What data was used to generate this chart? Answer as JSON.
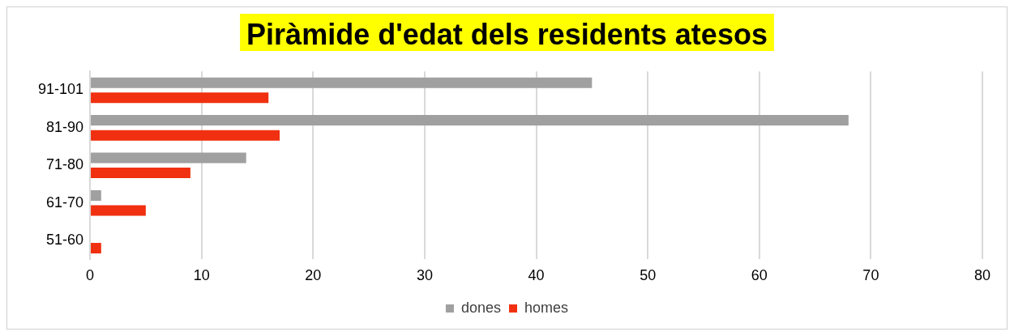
{
  "chart_data": {
    "type": "bar",
    "orientation": "horizontal",
    "title": "Piràmide d'edat dels residents atesos",
    "categories": [
      "91-101",
      "81-90",
      "71-80",
      "61-70",
      "51-60"
    ],
    "series": [
      {
        "name": "dones",
        "color": "#a0a0a0",
        "values": [
          45,
          68,
          14,
          1,
          0
        ]
      },
      {
        "name": "homes",
        "color": "#f03010",
        "values": [
          16,
          17,
          9,
          5,
          1
        ]
      }
    ],
    "xlim": [
      0,
      80
    ],
    "xticks": [
      0,
      10,
      20,
      30,
      40,
      50,
      60,
      70,
      80
    ],
    "grid": "x",
    "legend": "bottom"
  }
}
